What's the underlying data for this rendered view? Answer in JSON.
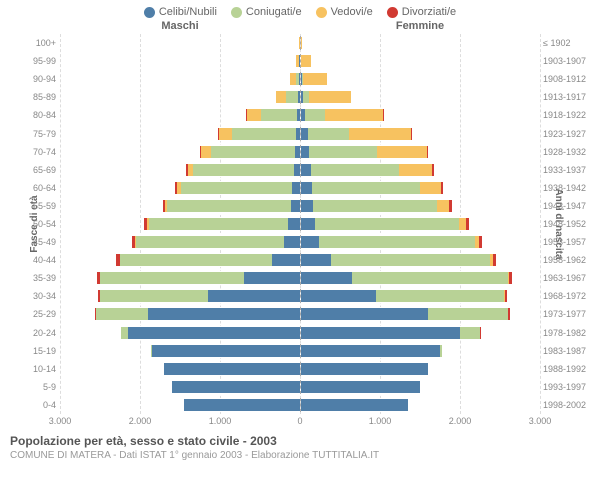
{
  "legend": [
    {
      "label": "Celibi/Nubili",
      "color": "#4f7ea8"
    },
    {
      "label": "Coniugati/e",
      "color": "#b8d296"
    },
    {
      "label": "Vedovi/e",
      "color": "#f7c260"
    },
    {
      "label": "Divorziati/e",
      "color": "#d13a32"
    }
  ],
  "headers": {
    "male": "Maschi",
    "female": "Femmine"
  },
  "axis_titles": {
    "left": "Fasce di età",
    "right": "Anni di nascita"
  },
  "xlim": 3000,
  "xticks": [
    3000,
    2000,
    1000,
    0,
    1000,
    2000,
    3000
  ],
  "xtick_labels": [
    "3.000",
    "2.000",
    "1.000",
    "0",
    "1.000",
    "2.000",
    "3.000"
  ],
  "colors": {
    "celibi": "#4f7ea8",
    "coniugati": "#b8d296",
    "vedovi": "#f7c260",
    "divorziati": "#d13a32",
    "grid": "#e8e8e8",
    "bg": "#ffffff"
  },
  "title": "Popolazione per età, sesso e stato civile - 2003",
  "subtitle": "COMUNE DI MATERA - Dati ISTAT 1° gennaio 2003 - Elaborazione TUTTITALIA.IT",
  "rows": [
    {
      "age": "100+",
      "birth": "≤ 1902",
      "m": [
        0,
        0,
        5,
        0
      ],
      "f": [
        0,
        0,
        20,
        0
      ]
    },
    {
      "age": "95-99",
      "birth": "1903-1907",
      "m": [
        5,
        5,
        30,
        0
      ],
      "f": [
        5,
        5,
        120,
        0
      ]
    },
    {
      "age": "90-94",
      "birth": "1908-1912",
      "m": [
        10,
        30,
        80,
        0
      ],
      "f": [
        15,
        20,
        300,
        0
      ]
    },
    {
      "age": "85-89",
      "birth": "1913-1917",
      "m": [
        20,
        150,
        120,
        0
      ],
      "f": [
        30,
        80,
        520,
        0
      ]
    },
    {
      "age": "80-84",
      "birth": "1918-1922",
      "m": [
        30,
        450,
        180,
        5
      ],
      "f": [
        60,
        250,
        720,
        5
      ]
    },
    {
      "age": "75-79",
      "birth": "1923-1927",
      "m": [
        40,
        800,
        170,
        10
      ],
      "f": [
        90,
        520,
        780,
        10
      ]
    },
    {
      "age": "70-74",
      "birth": "1928-1932",
      "m": [
        60,
        1050,
        120,
        15
      ],
      "f": [
        110,
        850,
        620,
        20
      ]
    },
    {
      "age": "65-69",
      "birth": "1933-1937",
      "m": [
        70,
        1260,
        70,
        20
      ],
      "f": [
        130,
        1100,
        420,
        25
      ]
    },
    {
      "age": "60-64",
      "birth": "1938-1942",
      "m": [
        90,
        1400,
        40,
        25
      ],
      "f": [
        150,
        1350,
        260,
        30
      ]
    },
    {
      "age": "55-59",
      "birth": "1943-1947",
      "m": [
        110,
        1550,
        25,
        30
      ],
      "f": [
        160,
        1550,
        150,
        35
      ]
    },
    {
      "age": "50-54",
      "birth": "1948-1952",
      "m": [
        140,
        1750,
        15,
        40
      ],
      "f": [
        180,
        1800,
        90,
        45
      ]
    },
    {
      "age": "45-49",
      "birth": "1953-1957",
      "m": [
        200,
        1850,
        10,
        40
      ],
      "f": [
        230,
        1950,
        50,
        45
      ]
    },
    {
      "age": "40-44",
      "birth": "1958-1962",
      "m": [
        350,
        1900,
        5,
        40
      ],
      "f": [
        380,
        2000,
        30,
        45
      ]
    },
    {
      "age": "35-39",
      "birth": "1963-1967",
      "m": [
        700,
        1800,
        5,
        35
      ],
      "f": [
        650,
        1950,
        15,
        40
      ]
    },
    {
      "age": "30-34",
      "birth": "1968-1972",
      "m": [
        1150,
        1350,
        0,
        25
      ],
      "f": [
        950,
        1600,
        10,
        30
      ]
    },
    {
      "age": "25-29",
      "birth": "1973-1977",
      "m": [
        1900,
        650,
        0,
        10
      ],
      "f": [
        1600,
        1000,
        5,
        15
      ]
    },
    {
      "age": "20-24",
      "birth": "1978-1982",
      "m": [
        2150,
        80,
        0,
        0
      ],
      "f": [
        2000,
        250,
        0,
        5
      ]
    },
    {
      "age": "15-19",
      "birth": "1983-1987",
      "m": [
        1850,
        5,
        0,
        0
      ],
      "f": [
        1750,
        20,
        0,
        0
      ]
    },
    {
      "age": "10-14",
      "birth": "1988-1992",
      "m": [
        1700,
        0,
        0,
        0
      ],
      "f": [
        1600,
        0,
        0,
        0
      ]
    },
    {
      "age": "5-9",
      "birth": "1993-1997",
      "m": [
        1600,
        0,
        0,
        0
      ],
      "f": [
        1500,
        0,
        0,
        0
      ]
    },
    {
      "age": "0-4",
      "birth": "1998-2002",
      "m": [
        1450,
        0,
        0,
        0
      ],
      "f": [
        1350,
        0,
        0,
        0
      ]
    }
  ]
}
